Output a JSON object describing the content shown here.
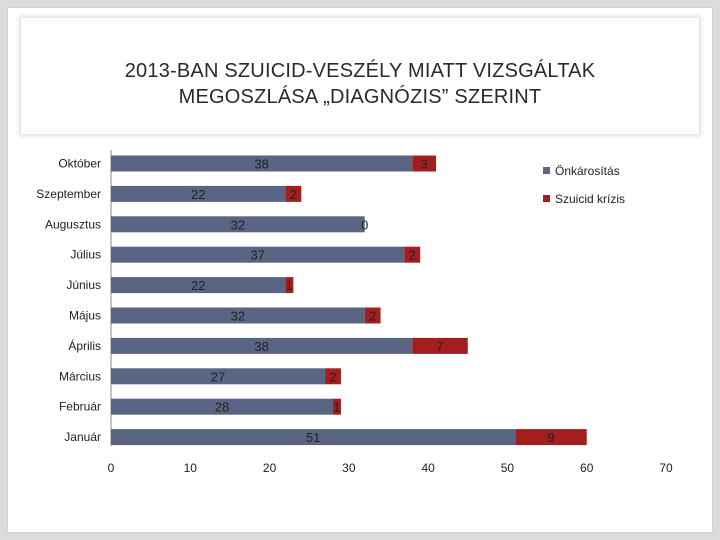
{
  "slide": {
    "title_line1": "2013-BAN SZUICID-VESZÉLY MIATT VIZSGÁLTAK",
    "title_line2": "MEGOSZLÁSA „DIAGNÓZIS” SZERINT"
  },
  "colors": {
    "series1": "#5a6584",
    "series2": "#a31f1f",
    "background": "#ffffff",
    "axis": "#8a8a8a"
  },
  "chart_data": {
    "type": "bar",
    "orientation": "horizontal",
    "stacked": true,
    "title": "2013-BAN SZUICID-VESZÉLY MIATT VIZSGÁLTAK MEGOSZLÁSA „DIAGNÓZIS” SZERINT",
    "categories": [
      "Október",
      "Szeptember",
      "Augusztus",
      "Július",
      "Június",
      "Május",
      "Április",
      "Március",
      "Február",
      "Január"
    ],
    "series": [
      {
        "name": "Önkárosítás",
        "values": [
          38,
          22,
          32,
          37,
          22,
          32,
          38,
          27,
          28,
          51
        ]
      },
      {
        "name": "Szuicid krízis",
        "values": [
          3,
          2,
          0,
          2,
          1,
          2,
          7,
          2,
          1,
          9
        ]
      }
    ],
    "xlim": [
      0,
      70
    ],
    "xticks": [
      0,
      10,
      20,
      30,
      40,
      50,
      60,
      70
    ],
    "xlabel": "",
    "ylabel": "",
    "grid": false,
    "legend_position": "top-right"
  }
}
